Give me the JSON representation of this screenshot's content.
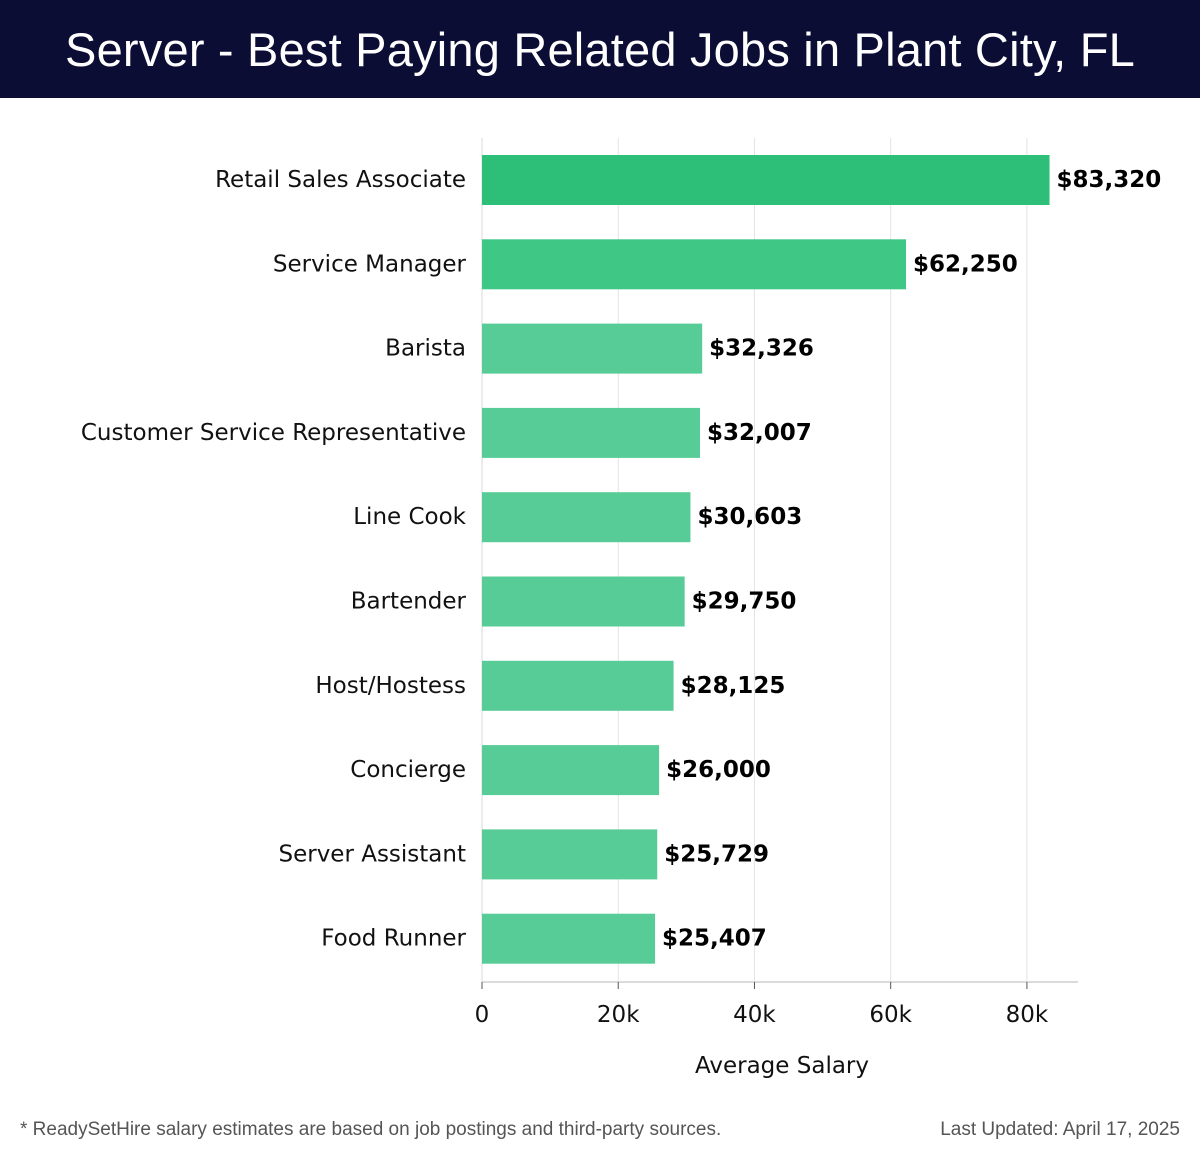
{
  "title": "Server - Best Paying Related Jobs in Plant City, FL",
  "footnote": "* ReadySetHire salary estimates are based on job postings and third-party sources.",
  "last_updated": "Last Updated: April 17, 2025",
  "colors": {
    "header_bg": "#0b0d35",
    "bar_top": "#2dbf78",
    "bar": "#57cc96"
  },
  "chart_data": {
    "type": "bar",
    "orientation": "horizontal",
    "categories": [
      "Retail Sales Associate",
      "Service Manager",
      "Barista",
      "Customer Service Representative",
      "Line Cook",
      "Bartender",
      "Host/Hostess",
      "Concierge",
      "Server Assistant",
      "Food Runner"
    ],
    "values": [
      83320,
      62250,
      32326,
      32007,
      30603,
      29750,
      28125,
      26000,
      25729,
      25407
    ],
    "value_labels": [
      "$83,320",
      "$62,250",
      "$32,326",
      "$32,007",
      "$30,603",
      "$29,750",
      "$28,125",
      "$26,000",
      "$25,729",
      "$25,407"
    ],
    "xlabel": "Average Salary",
    "ylabel": "",
    "xlim": [
      0,
      87500
    ],
    "xticks": [
      0,
      20000,
      40000,
      60000,
      80000
    ],
    "xtick_labels": [
      "0",
      "20k",
      "40k",
      "60k",
      "80k"
    ],
    "grid": "vertical",
    "legend": "none"
  }
}
